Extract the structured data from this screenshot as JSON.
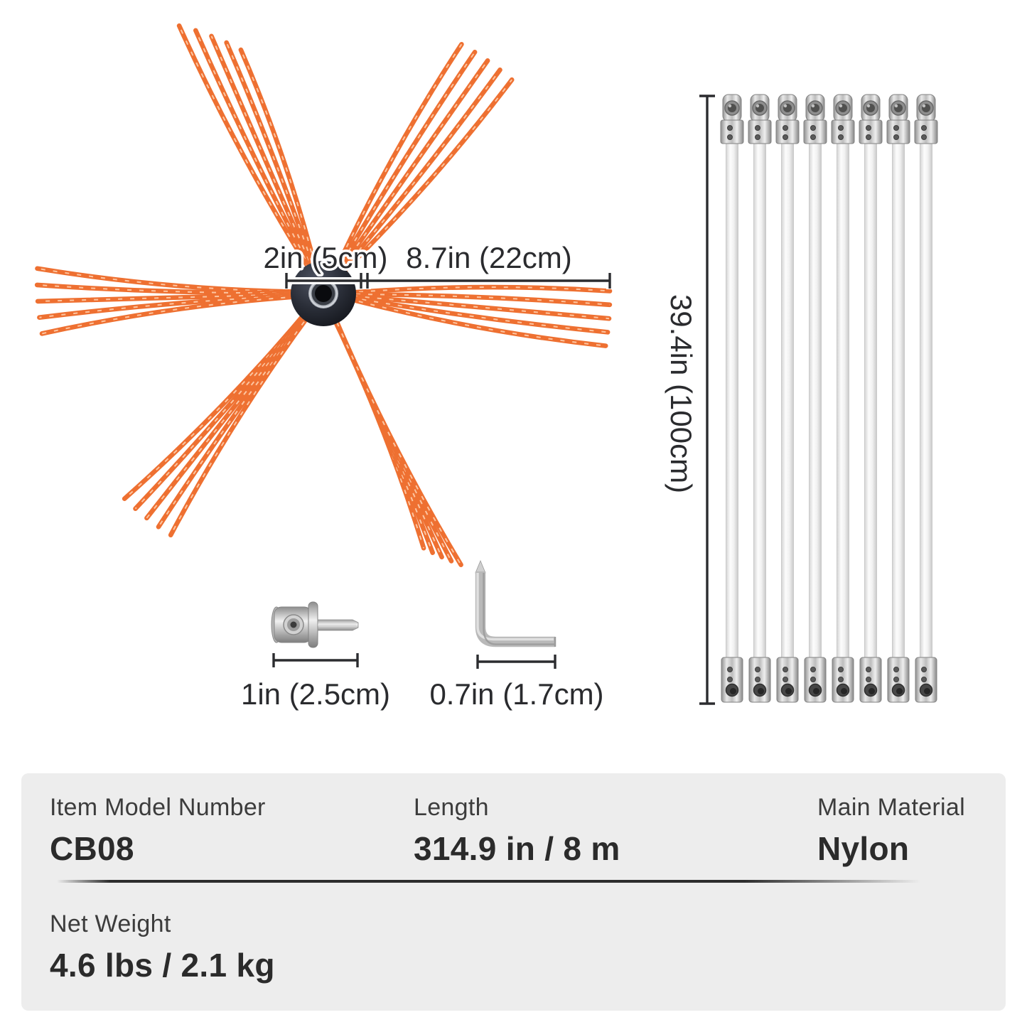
{
  "dimensions": {
    "hub_width": "2in (5cm)",
    "bristle_length": "8.7in (22cm)",
    "rod_length": "39.4in (100cm)",
    "adapter_length": "1in (2.5cm)",
    "wrench_length": "0.7in (1.7cm)"
  },
  "specs": {
    "row1": [
      {
        "label": "Item Model Number",
        "value": "CB08"
      },
      {
        "label": "Length",
        "value": "314.9 in / 8 m"
      },
      {
        "label": "Main Material",
        "value": "Nylon"
      }
    ],
    "row2": [
      {
        "label": "Net Weight",
        "value": "4.6 lbs / 2.1 kg"
      }
    ]
  },
  "rods": {
    "count": 8
  },
  "colors": {
    "bristle_orange": "#EE7031",
    "bristle_highlight": "#FFD4B4",
    "hub_dark": "#23262E",
    "metal_gray": "#C6C6C6",
    "panel_gray": "#EDEDED",
    "dimension_line": "#2B2C2F",
    "text_dark": "#2B2B2B"
  }
}
